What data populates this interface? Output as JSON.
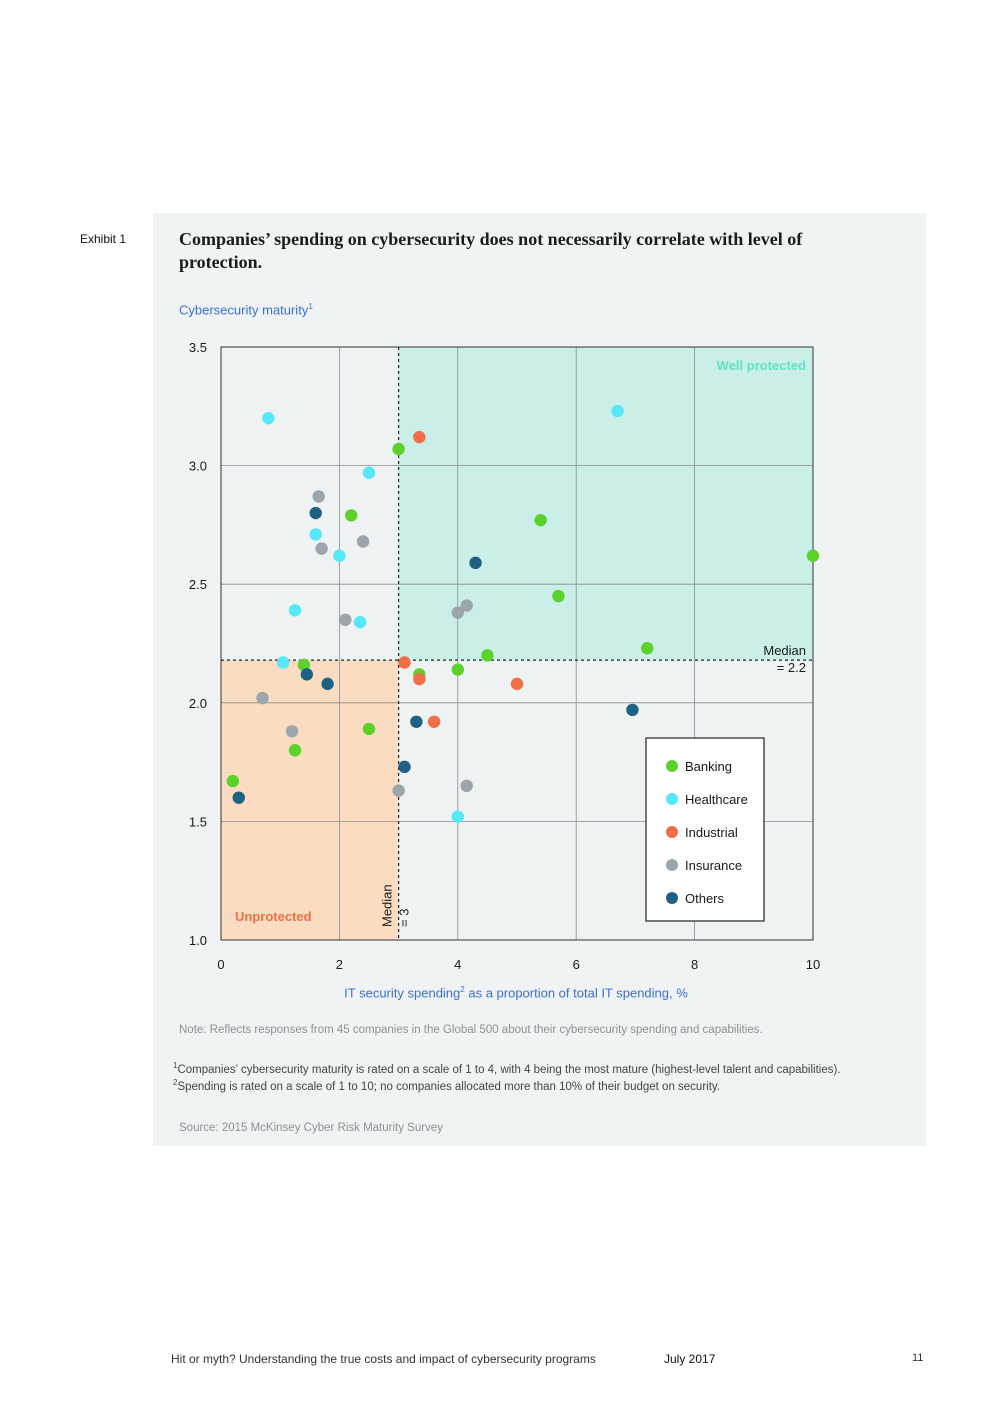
{
  "exhibit_label": "Exhibit 1",
  "title": "Companies’ spending on cybersecurity does not necessarily correlate with level of protection.",
  "colors": {
    "banking": "#5ad22a",
    "healthcare": "#55e8f8",
    "industrial": "#f26e47",
    "insurance": "#9aa6ac",
    "others": "#1f6184",
    "well_protected_zone": "#c9efe8",
    "unprotected_zone": "#fbdcc1",
    "well_protected_text": "#62e2c6",
    "unprotected_text": "#f26e47",
    "axis_title": "#3b6fd8"
  },
  "chart_data": {
    "type": "scatter",
    "title": "Companies’ spending on cybersecurity does not necessarily correlate with level of protection.",
    "ylabel": "Cybersecurity maturity",
    "ylabel_sup": "1",
    "xlabel_pre": "IT security spending",
    "xlabel_sup": "2",
    "xlabel_post": " as a proportion of total IT spending, %",
    "xlim": [
      0,
      10
    ],
    "ylim": [
      1.0,
      3.5
    ],
    "x_ticks": [
      "0",
      "2",
      "4",
      "6",
      "8",
      "10"
    ],
    "y_ticks": [
      "1.0",
      "1.5",
      "2.0",
      "2.5",
      "3.0",
      "3.5"
    ],
    "grid": true,
    "legend_position": "bottom-right",
    "median_x": {
      "value": 3,
      "label_line1": "Median",
      "label_line2": "= 3"
    },
    "median_y": {
      "value": 2.18,
      "label_line1": "Median",
      "label_line2": "= 2.2"
    },
    "zones": {
      "well_protected": "Well protected",
      "unprotected": "Unprotected"
    },
    "series": [
      {
        "name": "Banking",
        "color_key": "banking",
        "points": [
          [
            3.0,
            3.07
          ],
          [
            2.2,
            2.79
          ],
          [
            5.4,
            2.77
          ],
          [
            5.7,
            2.45
          ],
          [
            10.0,
            2.62
          ],
          [
            7.2,
            2.23
          ],
          [
            4.5,
            2.2
          ],
          [
            1.4,
            2.16
          ],
          [
            3.35,
            2.12
          ],
          [
            4.0,
            2.14
          ],
          [
            2.5,
            1.89
          ],
          [
            1.25,
            1.8
          ],
          [
            0.2,
            1.67
          ]
        ]
      },
      {
        "name": "Healthcare",
        "color_key": "healthcare",
        "points": [
          [
            0.8,
            3.2
          ],
          [
            6.7,
            3.23
          ],
          [
            2.5,
            2.97
          ],
          [
            1.6,
            2.71
          ],
          [
            2.0,
            2.62
          ],
          [
            1.25,
            2.39
          ],
          [
            2.35,
            2.34
          ],
          [
            1.05,
            2.17
          ],
          [
            4.0,
            1.52
          ]
        ]
      },
      {
        "name": "Industrial",
        "color_key": "industrial",
        "points": [
          [
            3.35,
            3.12
          ],
          [
            3.1,
            2.17
          ],
          [
            3.35,
            2.1
          ],
          [
            5.0,
            2.08
          ],
          [
            3.6,
            1.92
          ]
        ]
      },
      {
        "name": "Insurance",
        "color_key": "insurance",
        "points": [
          [
            1.65,
            2.87
          ],
          [
            1.7,
            2.65
          ],
          [
            2.4,
            2.68
          ],
          [
            2.1,
            2.35
          ],
          [
            4.0,
            2.38
          ],
          [
            4.15,
            2.41
          ],
          [
            0.7,
            2.02
          ],
          [
            1.2,
            1.88
          ],
          [
            3.0,
            1.63
          ],
          [
            4.15,
            1.65
          ]
        ]
      },
      {
        "name": "Others",
        "color_key": "others",
        "points": [
          [
            1.6,
            2.8
          ],
          [
            4.3,
            2.59
          ],
          [
            1.45,
            2.12
          ],
          [
            1.8,
            2.08
          ],
          [
            3.3,
            1.92
          ],
          [
            6.95,
            1.97
          ],
          [
            3.1,
            1.73
          ],
          [
            0.3,
            1.6
          ]
        ]
      }
    ]
  },
  "note": "Note: Reflects responses from 45 companies in the Global 500 about their cybersecurity spending and capabilities.",
  "footnotes": [
    {
      "marker": "1",
      "text": "Companies’ cybersecurity maturity is rated on a scale of 1 to 4, with 4 being the most mature (highest-level talent and capabilities)."
    },
    {
      "marker": "2",
      "text": "Spending is rated on a scale of 1 to 10; no companies allocated more than 10% of their budget on security."
    }
  ],
  "source": "Source: 2015 McKinsey Cyber Risk Maturity Survey",
  "footer": {
    "publication_title": "Hit or myth? Understanding the true costs and impact of cybersecurity programs",
    "date": "July 2017",
    "page_number": "11"
  }
}
